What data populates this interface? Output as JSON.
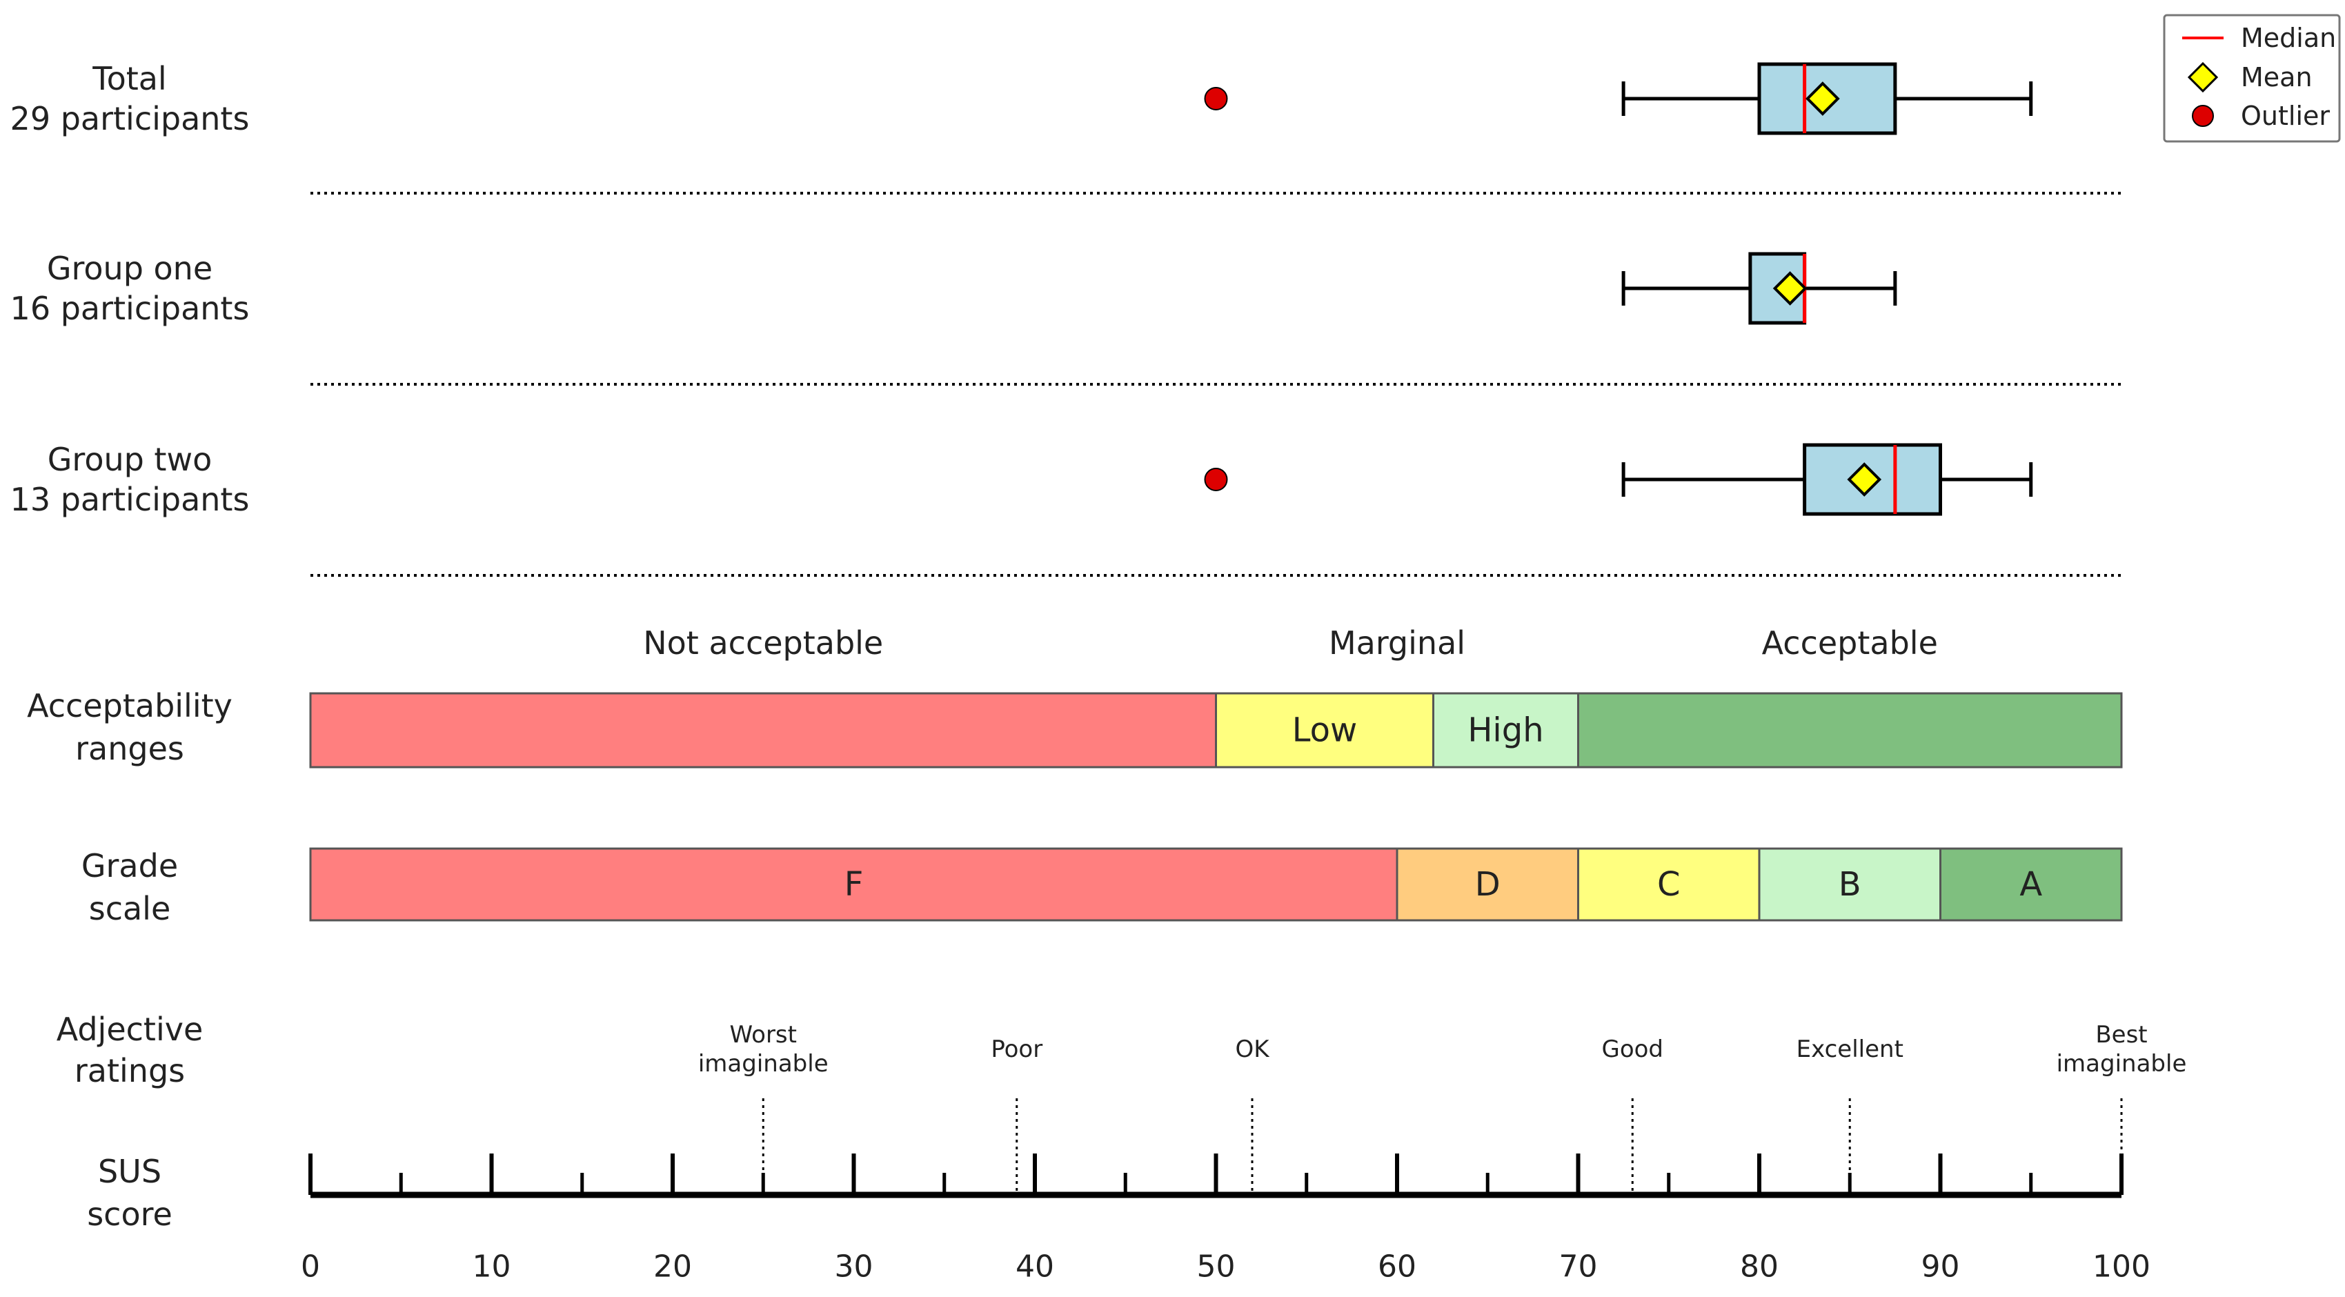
{
  "chart_data": {
    "type": "boxplot",
    "x_range": [
      0,
      100
    ],
    "groups": [
      {
        "label_lines": [
          "Total",
          "29 participants"
        ],
        "whisker_low": 72.5,
        "q1": 80,
        "median": 82.5,
        "mean": 83.5,
        "q3": 87.5,
        "whisker_high": 95,
        "outliers": [
          50
        ]
      },
      {
        "label_lines": [
          "Group one",
          "16 participants"
        ],
        "whisker_low": 72.5,
        "q1": 79.5,
        "median": 82.5,
        "mean": 81.7,
        "q3": 82.5,
        "whisker_high": 87.5,
        "outliers": []
      },
      {
        "label_lines": [
          "Group two",
          "13 participants"
        ],
        "whisker_low": 72.5,
        "q1": 82.5,
        "median": 87.5,
        "mean": 85.8,
        "q3": 90,
        "whisker_high": 95,
        "outliers": [
          50
        ]
      }
    ],
    "legend": {
      "position": "top-right",
      "items": [
        {
          "name": "Median",
          "symbol": "line",
          "color": "#ff0000"
        },
        {
          "name": "Mean",
          "symbol": "diamond",
          "color": "#ffff00"
        },
        {
          "name": "Outlier",
          "symbol": "circle",
          "color": "#dd0000"
        }
      ]
    },
    "acceptability": {
      "row_label_lines": [
        "Acceptability",
        "ranges"
      ],
      "categories": [
        {
          "name": "Not acceptable",
          "from": 0,
          "to": 50
        },
        {
          "name": "Marginal",
          "from": 50,
          "to": 70
        },
        {
          "name": "Acceptable",
          "from": 70,
          "to": 100
        }
      ],
      "segments": [
        {
          "label": "",
          "from": 0,
          "to": 50,
          "color": "#ff7f7f"
        },
        {
          "label": "Low",
          "from": 50,
          "to": 62,
          "color": "#ffff7f"
        },
        {
          "label": "High",
          "from": 62,
          "to": 70,
          "color": "#c8f5c8"
        },
        {
          "label": "",
          "from": 70,
          "to": 100,
          "color": "#7fbf7f"
        }
      ]
    },
    "grade_scale": {
      "row_label_lines": [
        "Grade",
        "scale"
      ],
      "segments": [
        {
          "label": "F",
          "from": 0,
          "to": 60,
          "color": "#ff7f7f"
        },
        {
          "label": "D",
          "from": 60,
          "to": 70,
          "color": "#ffcc7f"
        },
        {
          "label": "C",
          "from": 70,
          "to": 80,
          "color": "#ffff7f"
        },
        {
          "label": "B",
          "from": 80,
          "to": 90,
          "color": "#c8f5c8"
        },
        {
          "label": "A",
          "from": 90,
          "to": 100,
          "color": "#7fbf7f"
        }
      ]
    },
    "adjective_ratings": {
      "row_label_lines": [
        "Adjective",
        "ratings"
      ],
      "items": [
        {
          "label_lines": [
            "Worst",
            "imaginable"
          ],
          "value": 25
        },
        {
          "label_lines": [
            "Poor"
          ],
          "value": 39
        },
        {
          "label_lines": [
            "OK"
          ],
          "value": 52
        },
        {
          "label_lines": [
            "Good"
          ],
          "value": 73
        },
        {
          "label_lines": [
            "Excellent"
          ],
          "value": 85
        },
        {
          "label_lines": [
            "Best",
            "imaginable"
          ],
          "value": 100
        }
      ]
    },
    "sus_axis": {
      "row_label_lines": [
        "SUS",
        "score"
      ],
      "major_ticks": [
        0,
        10,
        20,
        30,
        40,
        50,
        60,
        70,
        80,
        90,
        100
      ],
      "tick_labels": [
        "0",
        "10",
        "20",
        "30",
        "40",
        "50",
        "60",
        "70",
        "80",
        "90",
        "100"
      ],
      "minor_ticks": [
        5,
        15,
        25,
        35,
        45,
        55,
        65,
        75,
        85,
        95
      ]
    },
    "colors": {
      "box_fill": "#add8e6",
      "median": "#ff0000",
      "mean_fill": "#ffff00",
      "outlier": "#dd0000"
    }
  }
}
